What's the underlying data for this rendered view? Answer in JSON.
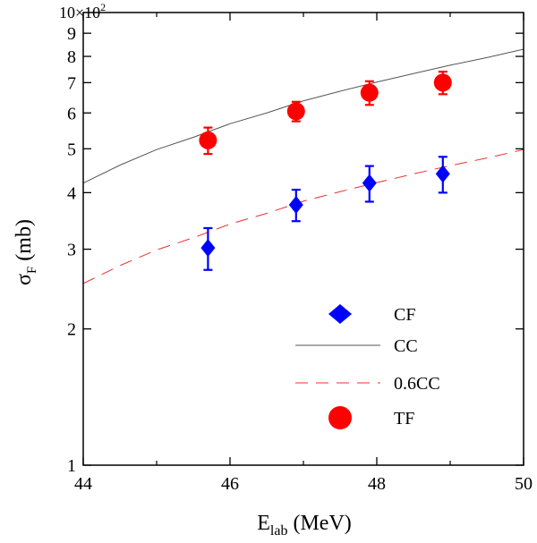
{
  "chart_data": {
    "type": "scatter",
    "xlabel_main": "E",
    "xlabel_sub": "lab",
    "xlabel_rest": " (MeV)",
    "ylabel_main": "σ",
    "ylabel_sub": "F",
    "ylabel_rest": " (mb)",
    "y_multiplier_base": "10×10",
    "y_multiplier_exp": "2",
    "y_scale": "log",
    "xlim": [
      44,
      50
    ],
    "ylim": [
      1,
      10
    ],
    "x_ticks": [
      {
        "value": 44,
        "label": "44"
      },
      {
        "value": 46,
        "label": "46"
      },
      {
        "value": 48,
        "label": "48"
      },
      {
        "value": 50,
        "label": "50"
      }
    ],
    "y_ticks": [
      {
        "value": 1,
        "label": "1"
      },
      {
        "value": 2,
        "label": "2"
      },
      {
        "value": 3,
        "label": "3"
      },
      {
        "value": 4,
        "label": "4"
      },
      {
        "value": 5,
        "label": "5"
      },
      {
        "value": 6,
        "label": "6"
      },
      {
        "value": 7,
        "label": "7"
      },
      {
        "value": 8,
        "label": "8"
      },
      {
        "value": 9,
        "label": "9"
      }
    ],
    "legend_position": "bottom-right",
    "series": [
      {
        "name": "CF",
        "kind": "points",
        "marker": "diamond",
        "color": "#0000ff",
        "points": [
          {
            "x": 45.7,
            "y": 3.02,
            "err": 0.32
          },
          {
            "x": 46.9,
            "y": 3.76,
            "err": 0.3
          },
          {
            "x": 47.9,
            "y": 4.2,
            "err": 0.38
          },
          {
            "x": 48.9,
            "y": 4.4,
            "err": 0.4
          }
        ]
      },
      {
        "name": "CC",
        "kind": "line",
        "style": "solid",
        "color": "#555555",
        "points": [
          {
            "x": 44,
            "y": 4.2
          },
          {
            "x": 44.5,
            "y": 4.6
          },
          {
            "x": 45,
            "y": 4.98
          },
          {
            "x": 45.5,
            "y": 5.3
          },
          {
            "x": 46,
            "y": 5.68
          },
          {
            "x": 46.5,
            "y": 6.0
          },
          {
            "x": 47,
            "y": 6.38
          },
          {
            "x": 47.5,
            "y": 6.7
          },
          {
            "x": 48,
            "y": 7.02
          },
          {
            "x": 48.5,
            "y": 7.33
          },
          {
            "x": 49,
            "y": 7.65
          },
          {
            "x": 49.5,
            "y": 7.95
          },
          {
            "x": 50,
            "y": 8.3
          }
        ]
      },
      {
        "name": "0.6CC",
        "kind": "line",
        "style": "dashed",
        "color": "#e83030",
        "points": [
          {
            "x": 44,
            "y": 2.52
          },
          {
            "x": 44.5,
            "y": 2.76
          },
          {
            "x": 45,
            "y": 2.99
          },
          {
            "x": 45.5,
            "y": 3.18
          },
          {
            "x": 46,
            "y": 3.41
          },
          {
            "x": 46.5,
            "y": 3.6
          },
          {
            "x": 47,
            "y": 3.83
          },
          {
            "x": 47.5,
            "y": 4.02
          },
          {
            "x": 48,
            "y": 4.21
          },
          {
            "x": 48.5,
            "y": 4.4
          },
          {
            "x": 49,
            "y": 4.59
          },
          {
            "x": 49.5,
            "y": 4.77
          },
          {
            "x": 50,
            "y": 4.98
          }
        ]
      },
      {
        "name": "TF",
        "kind": "points",
        "marker": "circle",
        "color": "#ff0000",
        "points": [
          {
            "x": 45.7,
            "y": 5.22,
            "err": 0.35
          },
          {
            "x": 46.9,
            "y": 6.05,
            "err": 0.3
          },
          {
            "x": 47.9,
            "y": 6.65,
            "err": 0.4
          },
          {
            "x": 48.9,
            "y": 7.0,
            "err": 0.4
          }
        ]
      }
    ],
    "legend": [
      {
        "label": "CF",
        "series": 0
      },
      {
        "label": "CC",
        "series": 1
      },
      {
        "label": "0.6CC",
        "series": 2
      },
      {
        "label": "TF",
        "series": 3
      }
    ]
  }
}
